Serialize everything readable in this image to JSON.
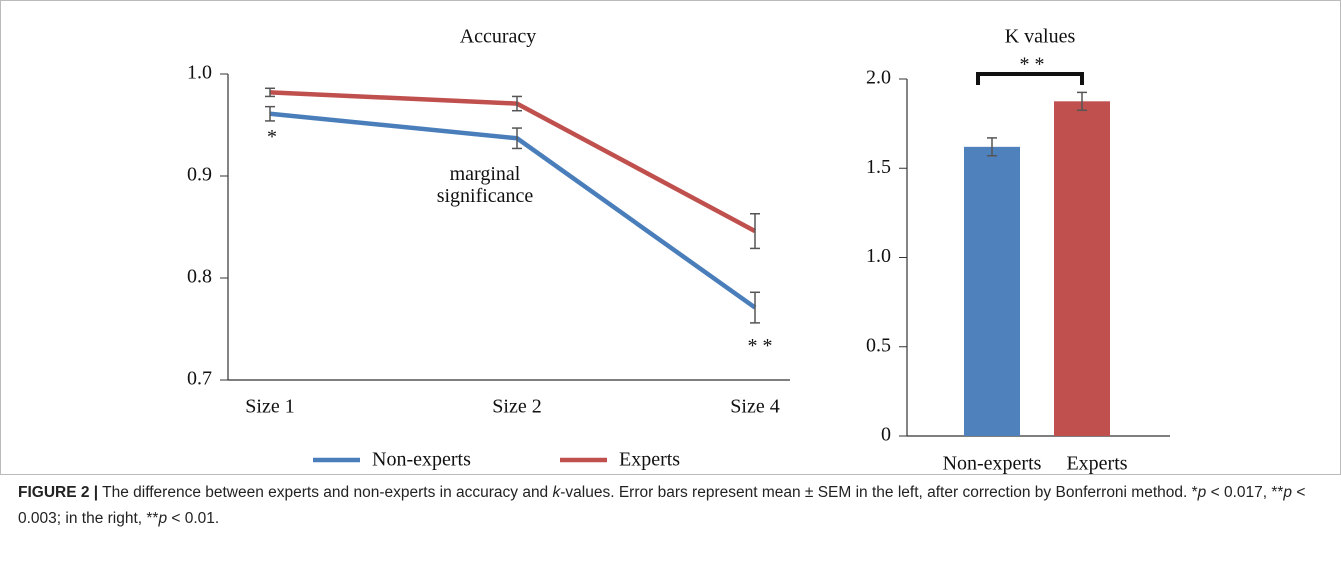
{
  "chart_data": [
    {
      "type": "line",
      "title": "Accuracy",
      "categories": [
        "Size 1",
        "Size 2",
        "Size 4"
      ],
      "series": [
        {
          "name": "Non-experts",
          "color": "#4a7ebb",
          "values": [
            0.961,
            0.937,
            0.771
          ],
          "errors": [
            0.007,
            0.01,
            0.015
          ]
        },
        {
          "name": "Experts",
          "color": "#c0504d",
          "values": [
            0.982,
            0.971,
            0.846
          ],
          "errors": [
            0.004,
            0.007,
            0.017
          ]
        }
      ],
      "ylim": [
        0.7,
        1.0
      ],
      "yticks": [
        0.7,
        0.8,
        0.9,
        {
          "value": 1,
          "label": "1.0"
        }
      ],
      "annotations": [
        "*",
        "marginal significance",
        "* *"
      ],
      "legend": "bottom"
    },
    {
      "type": "bar",
      "title": "K values",
      "categories": [
        "Non-experts",
        "Experts"
      ],
      "values": [
        1.62,
        1.875
      ],
      "errors": [
        0.05,
        0.05
      ],
      "colors": [
        "#4f81bd",
        "#c0504d"
      ],
      "ylim": [
        0,
        2
      ],
      "yticks": [
        0,
        0.5,
        {
          "value": 1,
          "label": "1.0"
        },
        1.5,
        {
          "value": 2,
          "label": "2.0"
        }
      ],
      "annotations": [
        "* *"
      ]
    }
  ],
  "caption": {
    "label": "FIGURE 2 |",
    "segments": [
      "The difference between experts and non-experts in accuracy and ",
      "k",
      "-values. Error bars represent mean ± SEM in the left, after correction by Bonferroni method. *",
      "p",
      " < 0.017, **",
      "p",
      " < 0.003; in the right, **",
      "p",
      " < 0.01."
    ]
  }
}
